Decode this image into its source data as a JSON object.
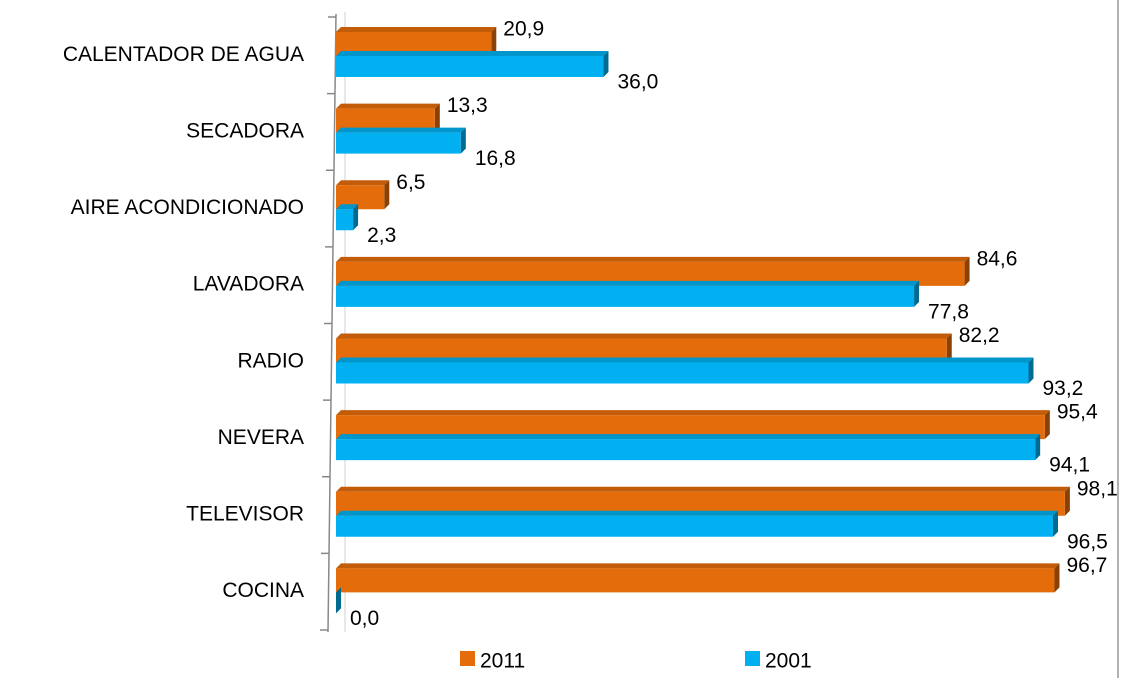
{
  "chart_data": {
    "type": "bar",
    "orientation": "horizontal",
    "categories": [
      "CALENTADOR DE AGUA",
      "SECADORA",
      "AIRE ACONDICIONADO",
      "LAVADORA",
      "RADIO",
      "NEVERA",
      "TELEVISOR",
      "COCINA"
    ],
    "series": [
      {
        "name": "2011",
        "color": "#e46c0a",
        "values": [
          20.9,
          13.3,
          6.5,
          84.6,
          82.2,
          95.4,
          98.1,
          96.7
        ],
        "value_labels": [
          "20,9",
          "13,3",
          "6,5",
          "84,6",
          "82,2",
          "95,4",
          "98,1",
          "96,7"
        ]
      },
      {
        "name": "2001",
        "color": "#00b0f0",
        "values": [
          36.0,
          16.8,
          2.3,
          77.8,
          93.2,
          94.1,
          96.5,
          0.0
        ],
        "value_labels": [
          "36,0",
          "16,8",
          "2,3",
          "77,8",
          "93,2",
          "94,1",
          "96,5",
          "0,0"
        ]
      }
    ],
    "xlim": [
      0,
      100
    ],
    "legend": "bottom"
  }
}
